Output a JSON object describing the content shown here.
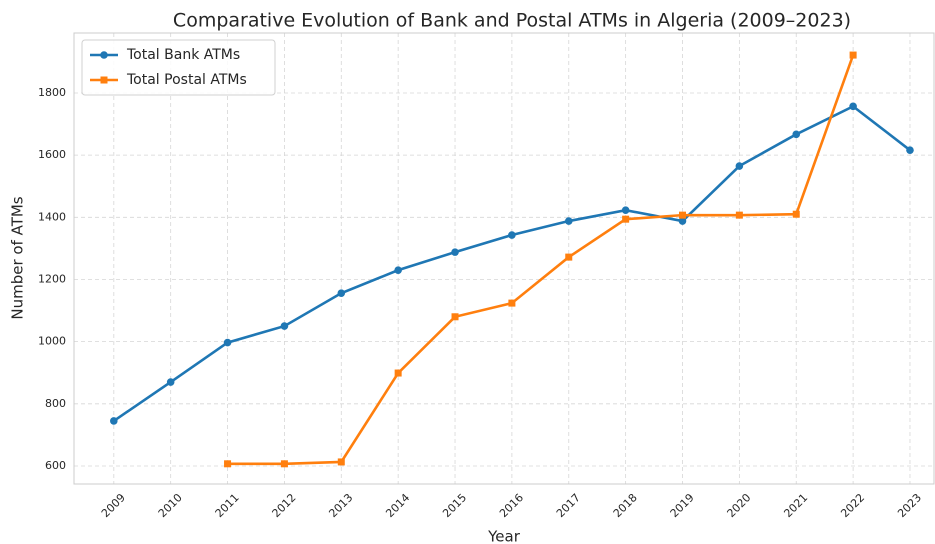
{
  "chart_data": {
    "type": "line",
    "title": "Comparative Evolution of Bank and Postal ATMs in Algeria (2009–2023)",
    "xlabel": "Year",
    "ylabel": "Number of ATMs",
    "x": [
      2009,
      2010,
      2011,
      2012,
      2013,
      2014,
      2015,
      2016,
      2017,
      2018,
      2019,
      2020,
      2021,
      2022,
      2023
    ],
    "series": [
      {
        "name": "Total Bank ATMs",
        "color": "#1f77b4",
        "marker": "circle",
        "values": [
          745,
          870,
          997,
          1050,
          1156,
          1230,
          1288,
          1343,
          1388,
          1423,
          1388,
          1565,
          1667,
          1757,
          1616
        ]
      },
      {
        "name": "Total Postal ATMs",
        "color": "#ff7f0e",
        "marker": "square",
        "values": [
          null,
          null,
          607,
          607,
          613,
          899,
          1080,
          1124,
          1272,
          1394,
          1407,
          1407,
          1410,
          1922,
          null
        ]
      }
    ],
    "xlim": [
      2008.3,
      2023.44
    ],
    "xticks": [
      2009,
      2010,
      2011,
      2012,
      2013,
      2014,
      2015,
      2016,
      2017,
      2018,
      2019,
      2020,
      2021,
      2022,
      2023
    ],
    "ylim": [
      542,
      1993
    ],
    "yticks": [
      600,
      800,
      1000,
      1200,
      1400,
      1600,
      1800
    ],
    "grid": true,
    "legend": "upper left"
  }
}
